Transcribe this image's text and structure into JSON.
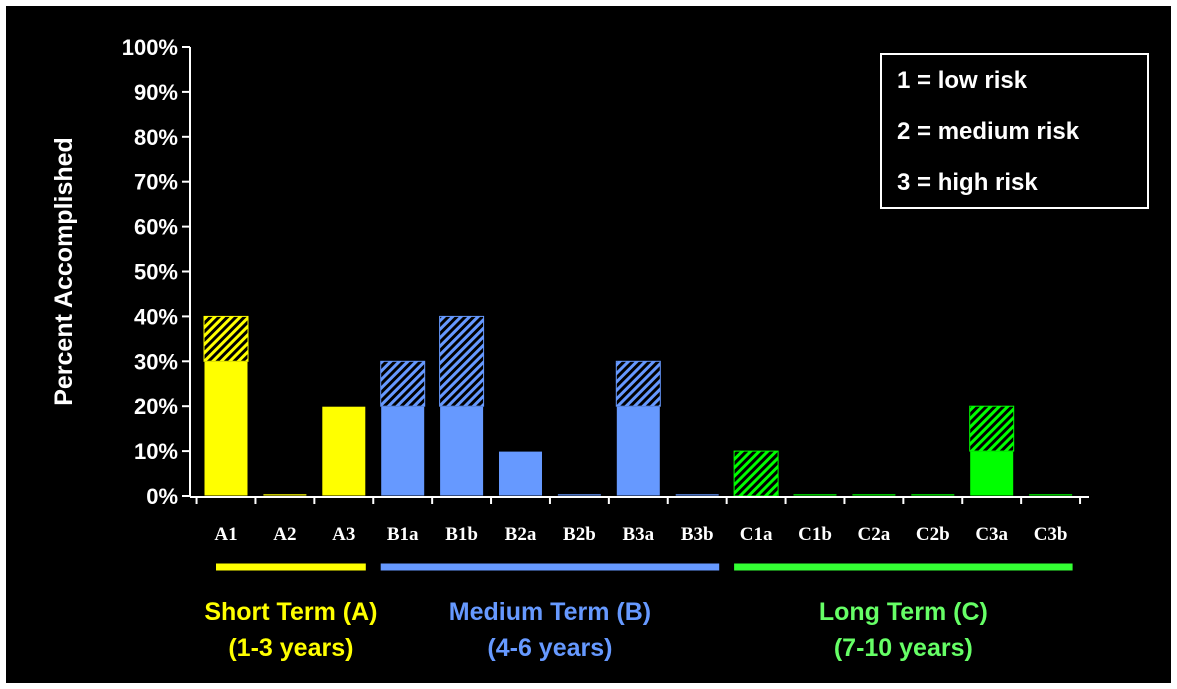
{
  "chart_data": {
    "type": "bar",
    "ylabel": "Percent Accomplished",
    "ylim": [
      0,
      100
    ],
    "yticks": [
      "0%",
      "10%",
      "20%",
      "30%",
      "40%",
      "50%",
      "60%",
      "70%",
      "80%",
      "90%",
      "100%"
    ],
    "categories": [
      "A1",
      "A2",
      "A3",
      "B1a",
      "B1b",
      "B2a",
      "B2b",
      "B3a",
      "B3b",
      "C1a",
      "C1b",
      "C2a",
      "C2b",
      "C3a",
      "C3b"
    ],
    "series": [
      {
        "pattern": "solid",
        "values": [
          30,
          0.5,
          20,
          20,
          20,
          10,
          0.5,
          20,
          0.5,
          0,
          0.5,
          0.5,
          0.5,
          10,
          0.5
        ]
      },
      {
        "pattern": "hatched",
        "values": [
          10,
          0,
          0,
          10,
          20,
          0,
          0,
          10,
          0,
          10,
          0,
          0,
          0,
          10,
          0
        ]
      }
    ],
    "bar_colors": [
      "#ffff00",
      "#ffff00",
      "#ffff00",
      "#6699ff",
      "#6699ff",
      "#6699ff",
      "#6699ff",
      "#6699ff",
      "#6699ff",
      "#00ff00",
      "#00ff00",
      "#00ff00",
      "#00ff00",
      "#00ff00",
      "#00ff00"
    ],
    "legend": {
      "placement": "top-right",
      "entries": [
        "1 = low risk",
        "2 = medium risk",
        "3 = high risk"
      ]
    },
    "groups": [
      {
        "line1": "Short Term (A)",
        "line2": "(1-3 years)",
        "color": "#ffff00",
        "text_color": "#ffff00",
        "from": 0,
        "to": 2
      },
      {
        "line1": "Medium Term (B)",
        "line2": "(4-6 years)",
        "color": "#6699ff",
        "text_color": "#6699ff",
        "from": 3,
        "to": 8
      },
      {
        "line1": "Long Term (C)",
        "line2": "(7-10 years)",
        "color": "#33ff33",
        "text_color": "#66ff66",
        "from": 9,
        "to": 14
      }
    ]
  }
}
